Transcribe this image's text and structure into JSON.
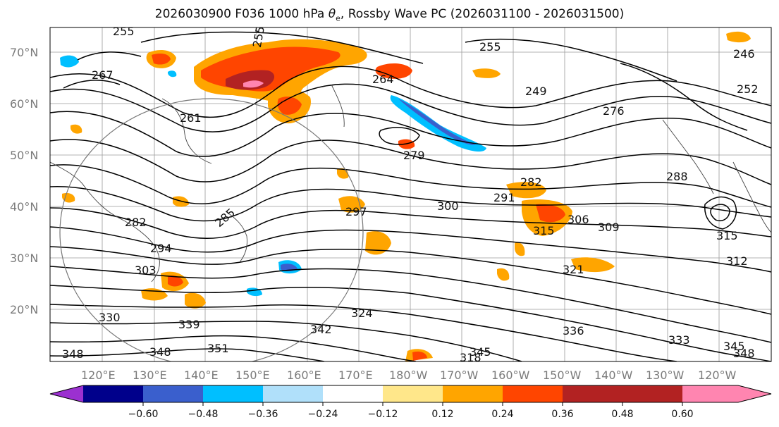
{
  "title": {
    "prefix": "2026030900 F036 1000 hPa ",
    "theta": "θ",
    "theta_sub": "e",
    "suffix": ", Rossby Wave PC (2026031100 - 2026031500)"
  },
  "map": {
    "lat_labels": [
      "70°N",
      "60°N",
      "50°N",
      "40°N",
      "30°N",
      "20°N"
    ],
    "lon_labels": [
      "120°E",
      "130°E",
      "140°E",
      "150°E",
      "160°E",
      "170°E",
      "180°W",
      "170°W",
      "160°W",
      "150°W",
      "140°W",
      "130°W",
      "120°W"
    ],
    "contour_labels": [
      "255",
      "255",
      "255",
      "249",
      "246",
      "252",
      "267",
      "261",
      "276",
      "279",
      "264",
      "282",
      "288",
      "285",
      "282",
      "291",
      "297",
      "300",
      "306",
      "309",
      "315",
      "315",
      "294",
      "303",
      "312",
      "321",
      "324",
      "330",
      "339",
      "342",
      "336",
      "333",
      "345",
      "348",
      "351",
      "348",
      "345",
      "348",
      "318"
    ]
  },
  "colorbar": {
    "tick_labels": [
      "−0.60",
      "−0.48",
      "−0.36",
      "−0.24",
      "−0.12",
      "0.12",
      "0.24",
      "0.36",
      "0.48",
      "0.60"
    ],
    "colors": [
      "#9b30d0",
      "#00008b",
      "#3a5fcd",
      "#00bfff",
      "#b0e0fa",
      "#ffffff",
      "#ffe78a",
      "#ffa500",
      "#ff4500",
      "#b22222",
      "#ff85b0"
    ]
  }
}
